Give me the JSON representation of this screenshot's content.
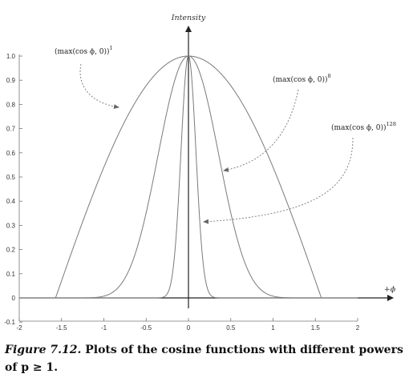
{
  "chart_data": {
    "type": "line",
    "title": "",
    "xlabel": "+ϕ",
    "ylabel": "Intensity",
    "xlim": [
      -2,
      2
    ],
    "ylim": [
      -0.1,
      1.0
    ],
    "xticks": [
      -2,
      -1.5,
      -1,
      -0.5,
      0,
      0.5,
      1,
      1.5,
      2
    ],
    "xtick_labels": [
      "-2",
      "-1.5",
      "-1",
      "-0.5",
      "0",
      "0.5",
      "1",
      "1.5",
      "2"
    ],
    "yticks": [
      -0.1,
      0,
      0.1,
      0.2,
      0.3,
      0.4,
      0.5,
      0.6,
      0.7,
      0.8,
      0.9,
      1.0
    ],
    "ytick_labels": [
      "-0.1",
      "0",
      "0.1",
      "0.2",
      "0.3",
      "0.4",
      "0.5",
      "0.6",
      "0.7",
      "0.8",
      "0.9",
      "1.0"
    ],
    "grid": false,
    "x": [
      -2.0,
      -1.6,
      -1.4,
      -1.2,
      -1.0,
      -0.8,
      -0.6,
      -0.4,
      -0.3,
      -0.2,
      -0.15,
      -0.1,
      -0.05,
      0,
      0.05,
      0.1,
      0.15,
      0.2,
      0.3,
      0.4,
      0.6,
      0.8,
      1.0,
      1.2,
      1.4,
      1.6,
      2.0
    ],
    "series": [
      {
        "name": "(max(cos ϕ, 0))¹",
        "label_base": "(max(cos ϕ, 0))",
        "label_exp": "1",
        "values": [
          0,
          0,
          0.17,
          0.362,
          0.54,
          0.697,
          0.825,
          0.921,
          0.955,
          0.98,
          0.989,
          0.995,
          0.999,
          1,
          0.999,
          0.995,
          0.989,
          0.98,
          0.955,
          0.921,
          0.825,
          0.697,
          0.54,
          0.362,
          0.17,
          0,
          0
        ]
      },
      {
        "name": "(max(cos ϕ, 0))⁸",
        "label_base": "(max(cos ϕ, 0))",
        "label_exp": "8",
        "values": [
          0,
          0,
          0,
          0,
          0.007,
          0.056,
          0.215,
          0.518,
          0.693,
          0.852,
          0.914,
          0.961,
          0.99,
          1,
          0.99,
          0.961,
          0.914,
          0.852,
          0.693,
          0.518,
          0.215,
          0.056,
          0.007,
          0,
          0,
          0,
          0
        ]
      },
      {
        "name": "(max(cos ϕ, 0))¹²⁸",
        "label_base": "(max(cos ϕ, 0))",
        "label_exp": "128",
        "values": [
          0,
          0,
          0,
          0,
          0,
          0,
          0,
          0,
          0.003,
          0.076,
          0.236,
          0.527,
          0.852,
          1,
          0.852,
          0.527,
          0.236,
          0.076,
          0.003,
          0,
          0,
          0,
          0,
          0,
          0,
          0,
          0
        ]
      }
    ]
  },
  "caption": {
    "figure_label": "Figure 7.12.",
    "text": " Plots of the cosine functions with different powers of p ≥ 1."
  }
}
